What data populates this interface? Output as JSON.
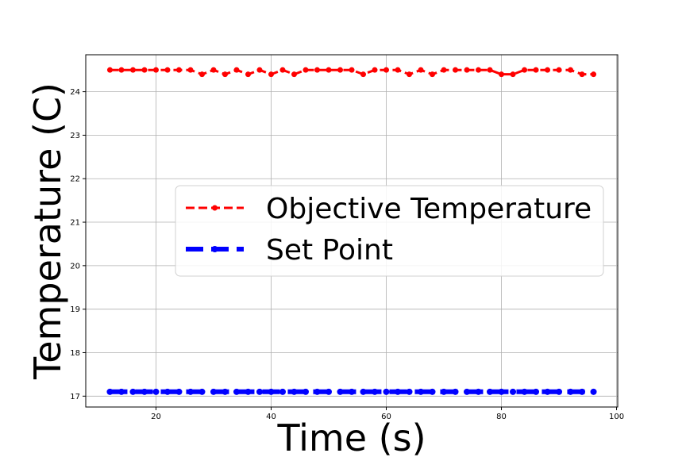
{
  "chart_data": {
    "type": "line",
    "title": "",
    "xlabel": "Time (s)",
    "ylabel": "Temperature (C)",
    "xlim": [
      7.8,
      100.2
    ],
    "ylim": [
      16.75,
      24.85
    ],
    "xticks": [
      20,
      40,
      60,
      80,
      100
    ],
    "yticks": [
      17,
      18,
      19,
      20,
      21,
      22,
      23,
      24
    ],
    "grid": true,
    "legend_position": "center-right",
    "x": [
      12,
      14,
      16,
      18,
      20,
      22,
      24,
      26,
      28,
      30,
      32,
      34,
      36,
      38,
      40,
      42,
      44,
      46,
      48,
      50,
      52,
      54,
      56,
      58,
      60,
      62,
      64,
      66,
      68,
      70,
      72,
      74,
      76,
      78,
      80,
      82,
      84,
      86,
      88,
      90,
      92,
      94,
      96
    ],
    "series": [
      {
        "name": "Objective Temperature",
        "color": "#ff0000",
        "style": "dashed",
        "values": [
          24.5,
          24.5,
          24.5,
          24.5,
          24.5,
          24.5,
          24.5,
          24.5,
          24.4,
          24.5,
          24.4,
          24.5,
          24.4,
          24.5,
          24.4,
          24.5,
          24.4,
          24.5,
          24.5,
          24.5,
          24.5,
          24.5,
          24.4,
          24.5,
          24.5,
          24.5,
          24.4,
          24.5,
          24.4,
          24.5,
          24.5,
          24.5,
          24.5,
          24.5,
          24.4,
          24.4,
          24.5,
          24.5,
          24.5,
          24.5,
          24.5,
          24.4,
          24.4
        ]
      },
      {
        "name": "Set Point",
        "color": "#0000ff",
        "style": "dashed",
        "values": [
          17.1,
          17.1,
          17.1,
          17.1,
          17.1,
          17.1,
          17.1,
          17.1,
          17.1,
          17.1,
          17.1,
          17.1,
          17.1,
          17.1,
          17.1,
          17.1,
          17.1,
          17.1,
          17.1,
          17.1,
          17.1,
          17.1,
          17.1,
          17.1,
          17.1,
          17.1,
          17.1,
          17.1,
          17.1,
          17.1,
          17.1,
          17.1,
          17.1,
          17.1,
          17.1,
          17.1,
          17.1,
          17.1,
          17.1,
          17.1,
          17.1,
          17.1,
          17.1
        ]
      }
    ]
  }
}
